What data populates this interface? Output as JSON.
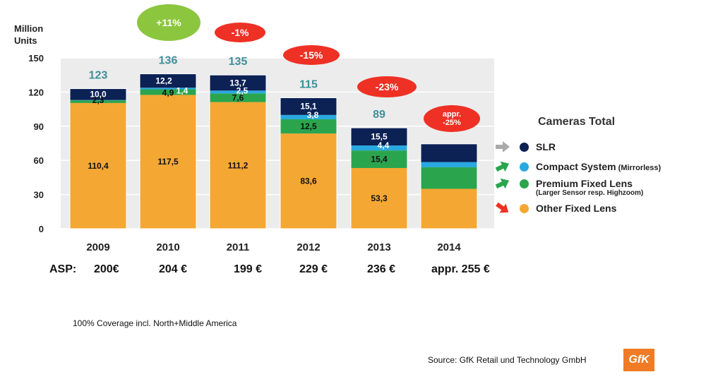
{
  "chart_data": {
    "type": "bar",
    "stacked": true,
    "y_axis_title": [
      "Million",
      "Units"
    ],
    "ylim": [
      0,
      150
    ],
    "yticks": [
      0,
      30,
      60,
      90,
      120,
      150
    ],
    "categories": [
      "2009",
      "2010",
      "2011",
      "2012",
      "2013",
      "2014"
    ],
    "series": [
      {
        "name": "Other Fixed Lens",
        "color": "#f5a733",
        "values": [
          110.4,
          117.5,
          111.2,
          83.6,
          53.3,
          35
        ],
        "labels": [
          "110,4",
          "117,5",
          "111,2",
          "83,6",
          "53,3",
          ""
        ]
      },
      {
        "name": "Premium Fixed Lens",
        "color": "#2aa54e",
        "values": [
          2.3,
          4.9,
          7.6,
          12.5,
          15.4,
          19
        ],
        "labels": [
          "2,3",
          "4,9",
          "7,6",
          "12,5",
          "15,4",
          ""
        ]
      },
      {
        "name": "Compact System",
        "color": "#29a8e0",
        "values": [
          0.3,
          1.4,
          2.5,
          3.8,
          4.4,
          4.5
        ],
        "labels": [
          "",
          "1,4",
          "2,5",
          "3,8",
          "4,4",
          ""
        ]
      },
      {
        "name": "SLR",
        "color": "#0c2154",
        "values": [
          10.0,
          12.2,
          13.7,
          15.1,
          15.5,
          16
        ],
        "labels": [
          "10,0",
          "12,2",
          "13,7",
          "15,1",
          "15,5",
          ""
        ]
      }
    ],
    "totals": [
      "123",
      "136",
      "135",
      "115",
      "89",
      ""
    ],
    "changes": [
      {
        "category": "2010",
        "text": "+11%",
        "color": "#8cc63f"
      },
      {
        "category": "2011",
        "text": "-1%",
        "color": "#ee3124"
      },
      {
        "category": "2012",
        "text": "-15%",
        "color": "#ee3124"
      },
      {
        "category": "2013",
        "text": "-23%",
        "color": "#ee3124"
      },
      {
        "category": "2014",
        "text": "appr. -25%",
        "lines": [
          "appr.",
          "-25%"
        ],
        "color": "#ee3124"
      }
    ]
  },
  "asp": {
    "label": "ASP:",
    "values": [
      "200€",
      "204 €",
      "199 €",
      "229 €",
      "236 €",
      "appr. 255 €"
    ]
  },
  "legend": {
    "title": "Cameras Total",
    "items": [
      {
        "label": "SLR",
        "suffix": "",
        "sub": "",
        "color": "#0c2154",
        "trend": "flat",
        "trend_color": "#aaaaaa"
      },
      {
        "label": "Compact System",
        "suffix": "(Mirrorless)",
        "sub": "",
        "color": "#29a8e0",
        "trend": "up",
        "trend_color": "#2aa54e"
      },
      {
        "label": "Premium Fixed Lens",
        "suffix": "",
        "sub": "(Larger Sensor resp. Highzoom)",
        "color": "#2aa54e",
        "trend": "up",
        "trend_color": "#2aa54e"
      },
      {
        "label": "Other Fixed Lens",
        "suffix": "",
        "sub": "",
        "color": "#f5a733",
        "trend": "down",
        "trend_color": "#ee3124"
      }
    ]
  },
  "footnote": "100% Coverage incl. North+Middle America",
  "source": "Source: GfK Retail und Technology GmbH",
  "logo_text": "GfK"
}
